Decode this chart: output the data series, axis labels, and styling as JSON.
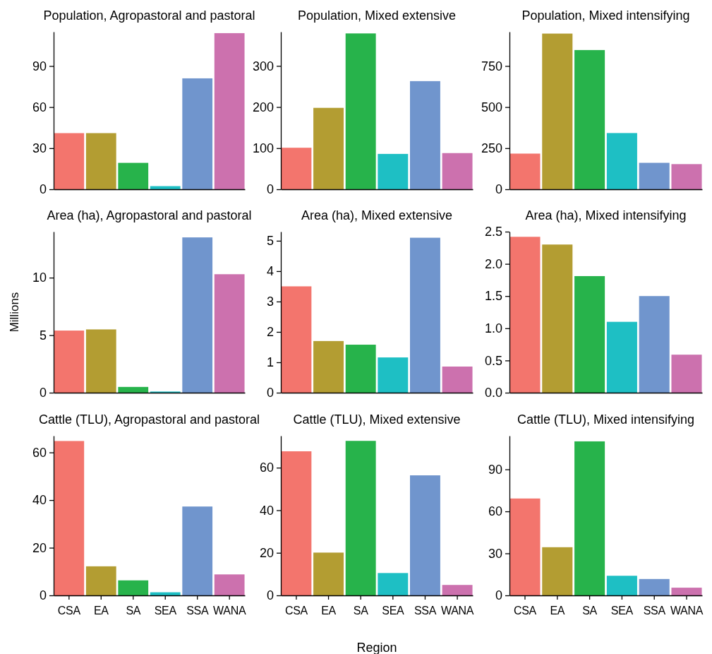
{
  "chart_data": [
    {
      "type": "bar",
      "title": "Population, Agropastoral and pastoral",
      "categories": [
        null,
        null,
        null,
        null,
        null,
        null
      ],
      "values": [
        41,
        41,
        19.3,
        2.3,
        81,
        114
      ],
      "colors": [
        "#f3756d",
        "#b39d32",
        "#27b34b",
        "#1ebfc4",
        "#7095cd",
        "#cc71ae"
      ],
      "ylim": [
        0,
        115
      ],
      "yticks": [
        0,
        30,
        60,
        90
      ],
      "tick_labels": "y"
    },
    {
      "type": "bar",
      "title": "Population, Mixed extensive",
      "categories": [
        null,
        null,
        null,
        null,
        null,
        null
      ],
      "values": [
        101,
        198,
        379,
        86,
        263,
        88
      ],
      "colors": [
        "#f3756d",
        "#b39d32",
        "#27b34b",
        "#1ebfc4",
        "#7095cd",
        "#cc71ae"
      ],
      "ylim": [
        0,
        383
      ],
      "yticks": [
        0,
        100,
        200,
        300
      ],
      "tick_labels": "y"
    },
    {
      "type": "bar",
      "title": "Population, Mixed intensifying",
      "categories": [
        null,
        null,
        null,
        null,
        null,
        null
      ],
      "values": [
        217,
        947,
        847,
        342,
        161,
        153
      ],
      "colors": [
        "#f3756d",
        "#b39d32",
        "#27b34b",
        "#1ebfc4",
        "#7095cd",
        "#cc71ae"
      ],
      "ylim": [
        0,
        958
      ],
      "yticks": [
        0,
        250,
        500,
        750
      ],
      "tick_labels": "y"
    },
    {
      "type": "bar",
      "title": "Area (ha), Agropastoral and pastoral",
      "ylabel": "Millions",
      "categories": [
        null,
        null,
        null,
        null,
        null,
        null
      ],
      "values": [
        5.4,
        5.5,
        0.5,
        0.1,
        13.5,
        10.3
      ],
      "colors": [
        "#f3756d",
        "#b39d32",
        "#27b34b",
        "#1ebfc4",
        "#7095cd",
        "#cc71ae"
      ],
      "ylim": [
        0,
        14
      ],
      "yticks": [
        0,
        5,
        10
      ],
      "tick_labels": "y"
    },
    {
      "type": "bar",
      "title": "Area (ha), Mixed extensive",
      "categories": [
        null,
        null,
        null,
        null,
        null,
        null
      ],
      "values": [
        3.5,
        1.7,
        1.58,
        1.16,
        5.1,
        0.86
      ],
      "colors": [
        "#f3756d",
        "#b39d32",
        "#27b34b",
        "#1ebfc4",
        "#7095cd",
        "#cc71ae"
      ],
      "ylim": [
        0,
        5.3
      ],
      "yticks": [
        0,
        1,
        2,
        3,
        4,
        5
      ],
      "tick_labels": "y"
    },
    {
      "type": "bar",
      "title": "Area (ha), Mixed intensifying",
      "categories": [
        null,
        null,
        null,
        null,
        null,
        null
      ],
      "values": [
        2.42,
        2.3,
        1.81,
        1.1,
        1.5,
        0.59
      ],
      "colors": [
        "#f3756d",
        "#b39d32",
        "#27b34b",
        "#1ebfc4",
        "#7095cd",
        "#cc71ae"
      ],
      "ylim": [
        0,
        2.5
      ],
      "yticks": [
        {
          "value": 0,
          "label": "0.0"
        },
        0.5,
        {
          "value": 1,
          "label": "1.0"
        },
        1.5,
        {
          "value": 2,
          "label": "2.0"
        },
        2.5
      ],
      "tick_labels": "y"
    },
    {
      "type": "bar",
      "title": "Cattle (TLU), Agropastoral and pastoral",
      "categories": [
        "CSA",
        "EA",
        "SA",
        "SEA",
        "SSA",
        "WANA"
      ],
      "values": [
        64.8,
        12.2,
        6.3,
        1.3,
        37.3,
        8.8
      ],
      "colors": [
        "#f3756d",
        "#b39d32",
        "#27b34b",
        "#1ebfc4",
        "#7095cd",
        "#cc71ae"
      ],
      "ylim": [
        0,
        67
      ],
      "yticks": [
        0,
        20,
        40,
        60
      ]
    },
    {
      "type": "bar",
      "title": "Cattle (TLU), Mixed extensive",
      "xlabel": "Region",
      "categories": [
        "CSA",
        "EA",
        "SA",
        "SEA",
        "SSA",
        "WANA"
      ],
      "values": [
        67.7,
        20.1,
        72.6,
        10.5,
        56.4,
        4.9
      ],
      "colors": [
        "#f3756d",
        "#b39d32",
        "#27b34b",
        "#1ebfc4",
        "#7095cd",
        "#cc71ae"
      ],
      "ylim": [
        0,
        75
      ],
      "yticks": [
        0,
        20,
        40,
        60
      ]
    },
    {
      "type": "bar",
      "title": "Cattle (TLU), Mixed intensifying",
      "categories": [
        "CSA",
        "EA",
        "SA",
        "SEA",
        "SSA",
        "WANA"
      ],
      "values": [
        69.2,
        34.4,
        110,
        14,
        11.7,
        5.5
      ],
      "colors": [
        "#f3756d",
        "#b39d32",
        "#27b34b",
        "#1ebfc4",
        "#7095cd",
        "#cc71ae"
      ],
      "ylim": [
        0,
        114
      ],
      "yticks": [
        0,
        30,
        60,
        90
      ]
    }
  ]
}
